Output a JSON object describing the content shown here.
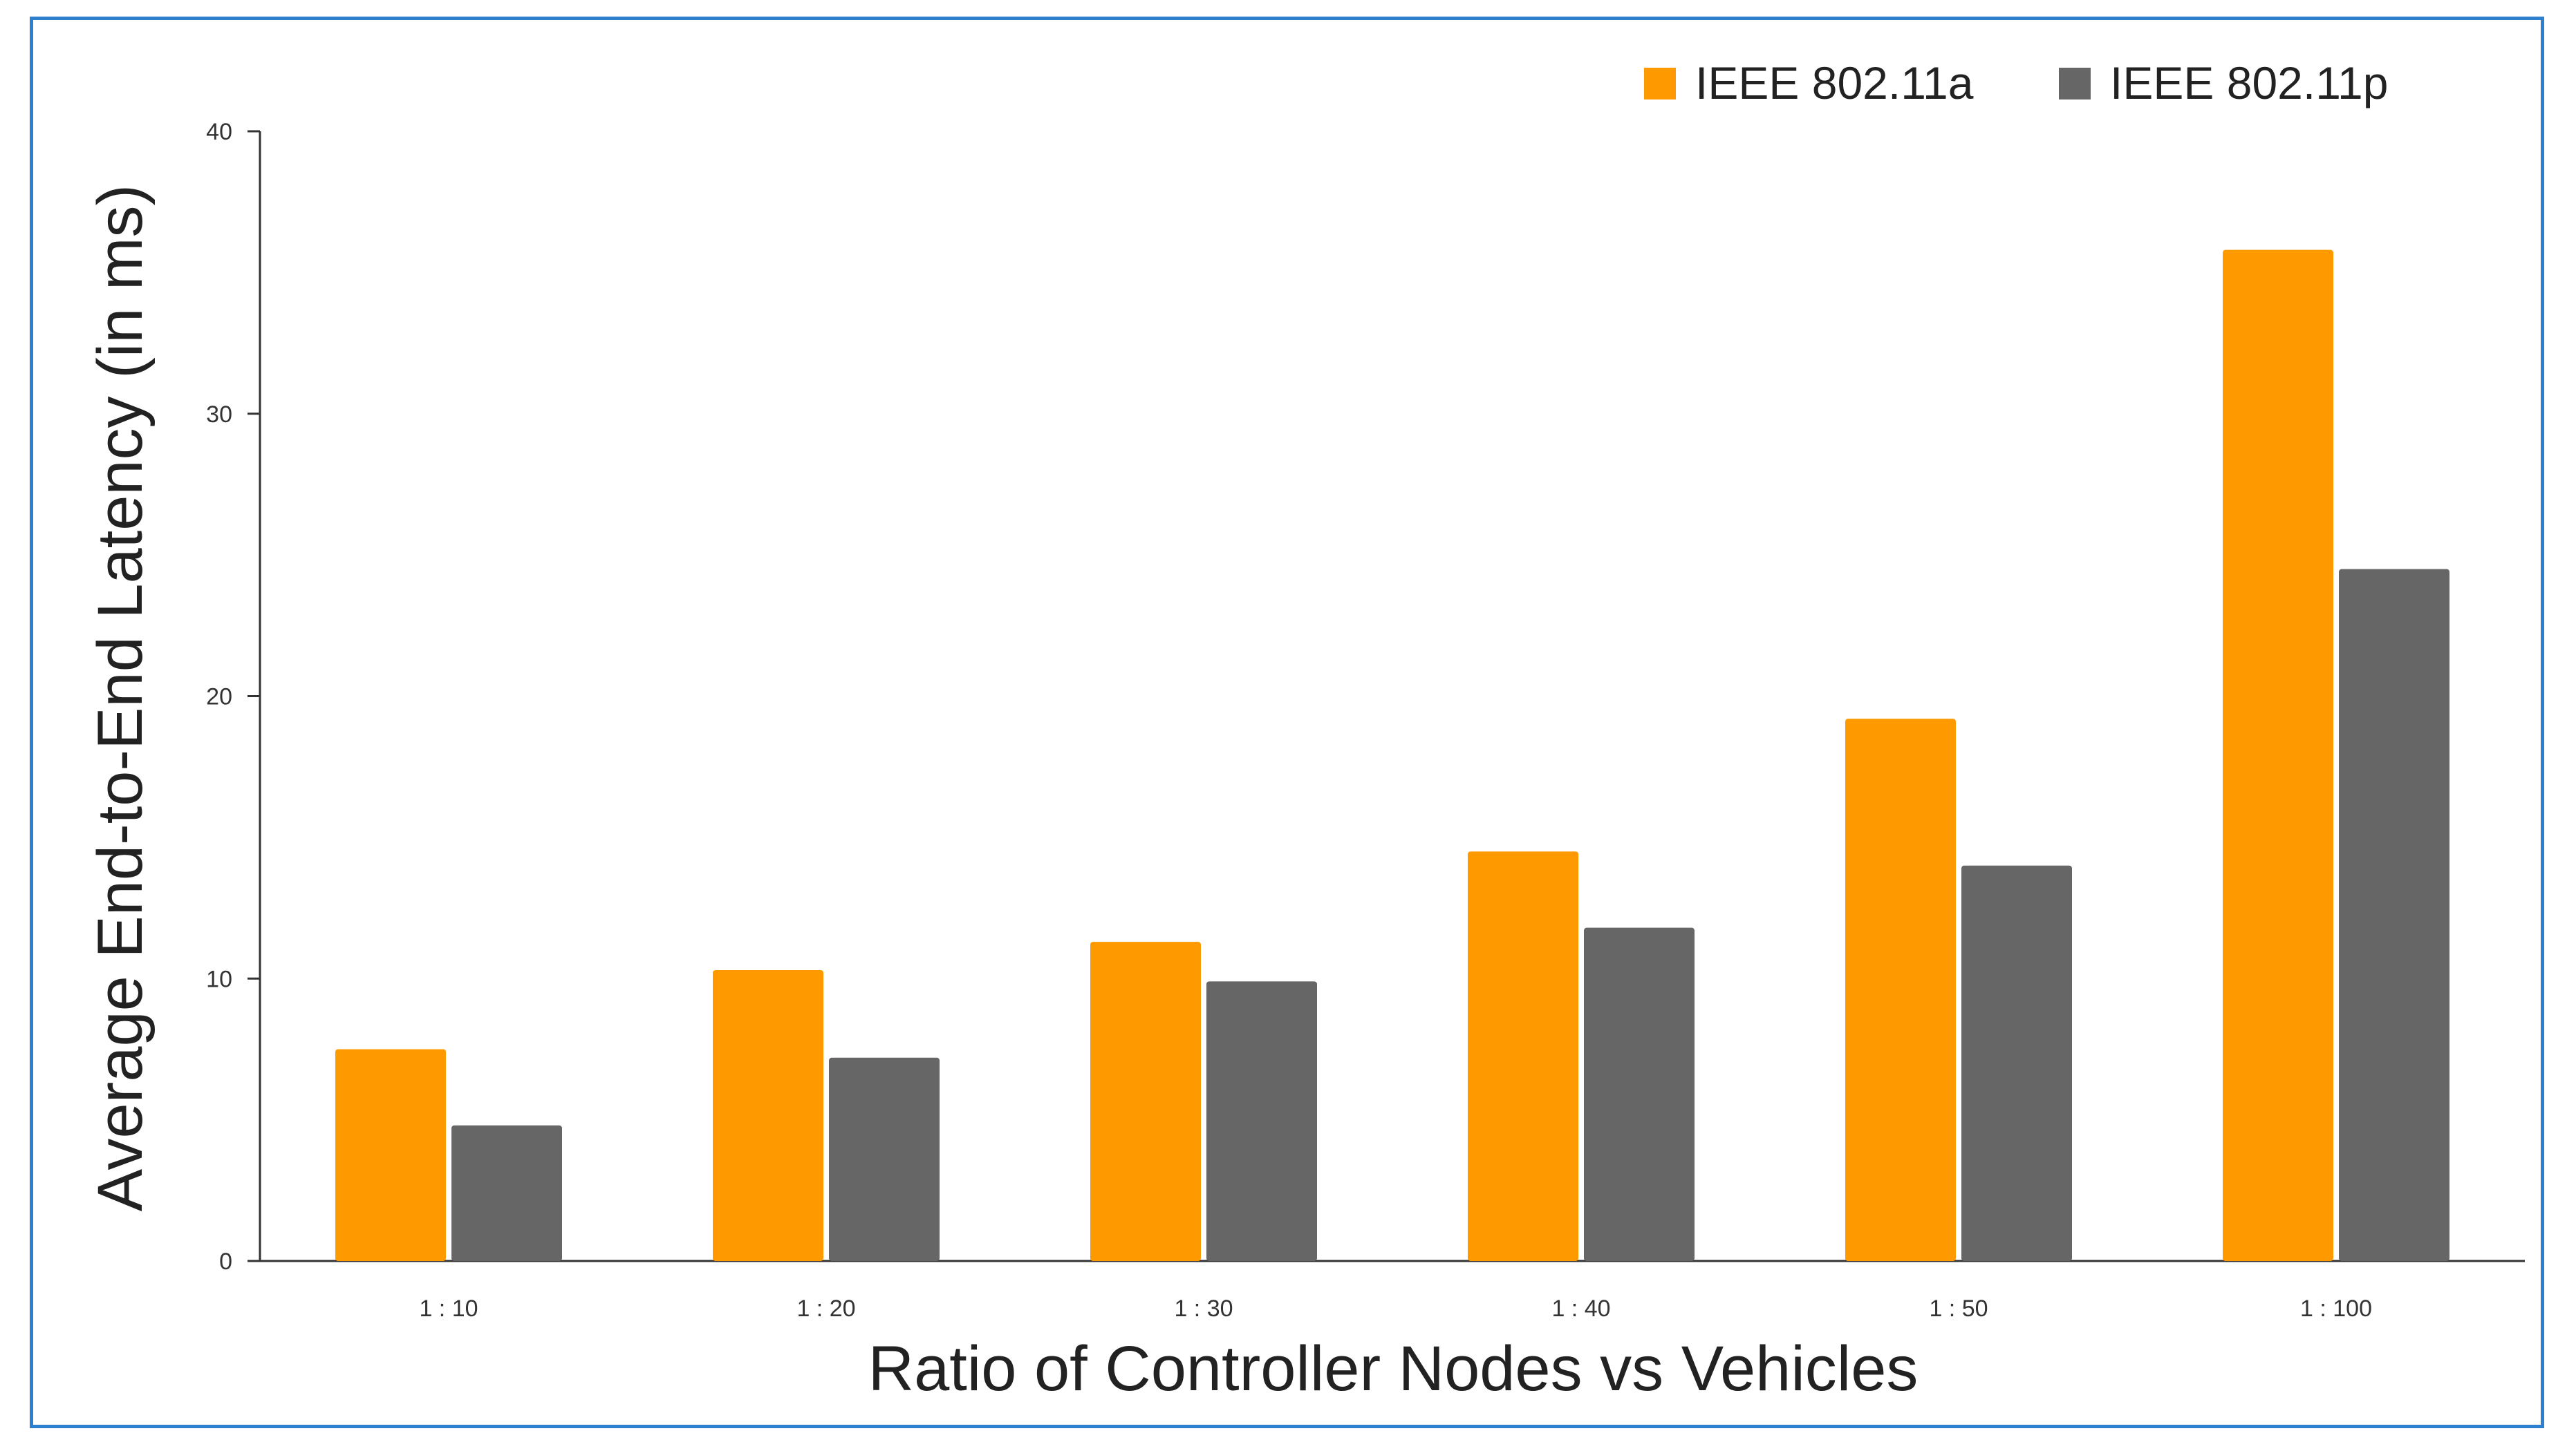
{
  "chart_data": {
    "type": "bar",
    "title": "",
    "xlabel": "Ratio of Controller Nodes vs Vehicles",
    "ylabel": "Average End-to-End Latency (in ms)",
    "categories": [
      "1 : 10",
      "1 : 20",
      "1 : 30",
      "1 : 40",
      "1 : 50",
      "1 : 100"
    ],
    "series": [
      {
        "name": "IEEE 802.11a",
        "color": "#ff9900",
        "values": [
          7.5,
          10.3,
          11.3,
          14.5,
          19.2,
          35.8
        ]
      },
      {
        "name": "IEEE 802.11p",
        "color": "#666666",
        "values": [
          4.8,
          7.2,
          9.9,
          11.8,
          14.0,
          24.5
        ]
      }
    ],
    "ylim": [
      0,
      40
    ],
    "yticks": [
      "0",
      "10",
      "20",
      "30",
      "40"
    ],
    "ytick_values": [
      0,
      10,
      20,
      30,
      40
    ],
    "grid": false,
    "legend_position": "top-right"
  }
}
